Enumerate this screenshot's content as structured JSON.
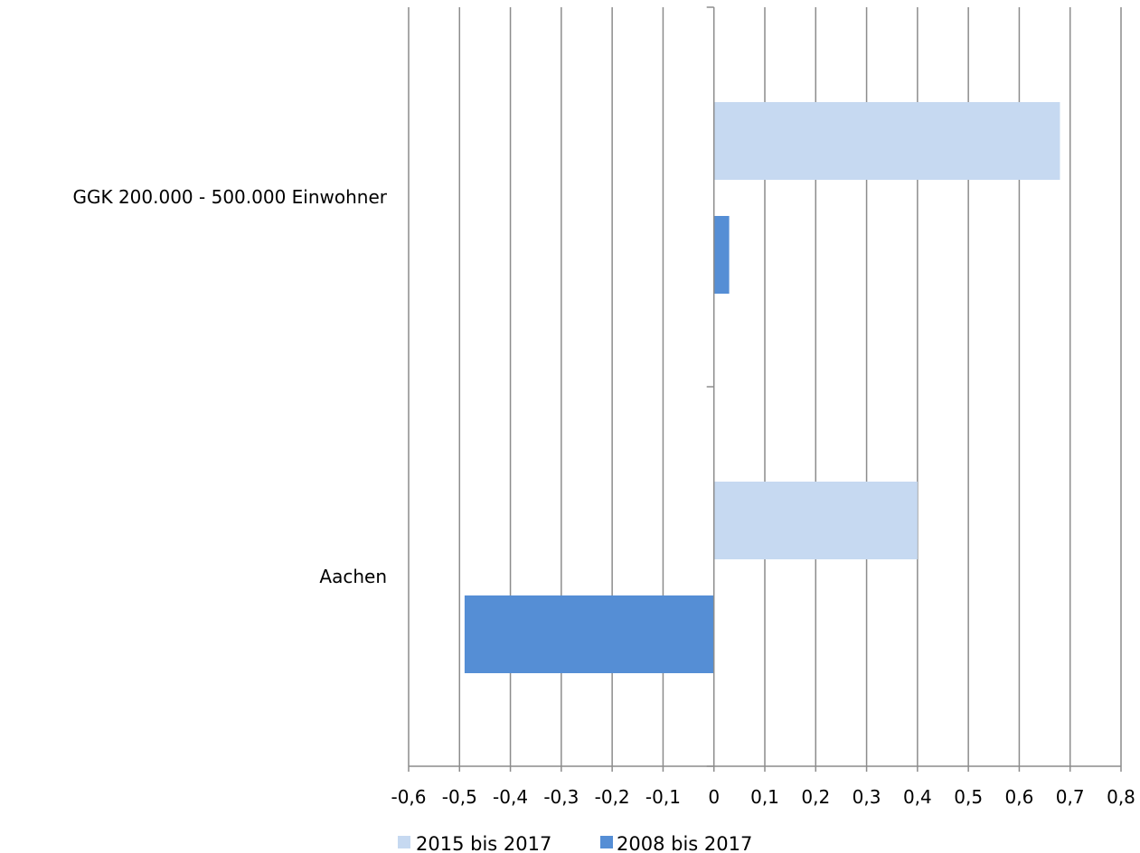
{
  "chart_data": {
    "type": "bar",
    "orientation": "horizontal",
    "categories": [
      "GGK 200.000 - 500.000 Einwohner",
      "Aachen"
    ],
    "series": [
      {
        "name": "2015 bis 2017",
        "values": [
          0.68,
          0.4
        ],
        "color": "#c6d9f1"
      },
      {
        "name": "2008 bis 2017",
        "values": [
          0.03,
          -0.49
        ],
        "color": "#558ed5"
      }
    ],
    "xlim": [
      -0.6,
      0.8
    ],
    "xticks": [
      "-0,6",
      "-0,5",
      "-0,4",
      "-0,3",
      "-0,2",
      "-0,1",
      "0",
      "0,1",
      "0,2",
      "0,3",
      "0,4",
      "0,5",
      "0,6",
      "0,7",
      "0,8"
    ],
    "grid": "vertical",
    "legend": "bottom-center",
    "title": "",
    "xlabel": "",
    "ylabel": ""
  }
}
